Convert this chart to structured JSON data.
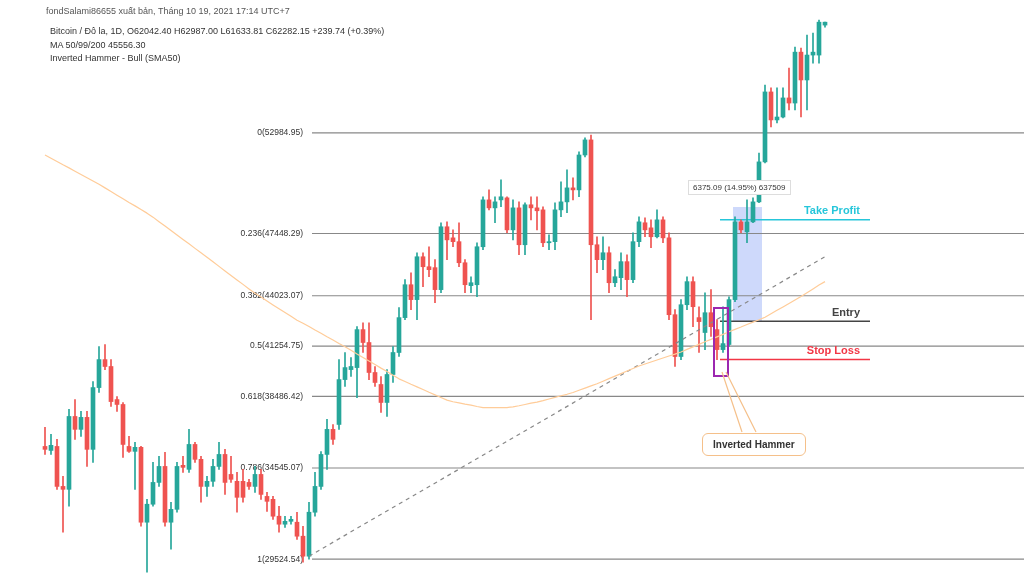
{
  "chart_data": {
    "type": "candlestick",
    "title": "fondSalami86655 xuất bản, Tháng 10 19, 2021 17:14 UTC+7",
    "subtitle": "Bitcoin / Đô la, 1D, O62042.40 H62987.00 L61633.81 C62282.15 +239.74 (+0.39%)",
    "annotations": [
      "MA 50/99/200 45556.30",
      "Inverted Hammer - Bull (SMA50)",
      "6375.09 (14.95%) 637509",
      "Inverted Hammer"
    ],
    "categories": [
      null,
      null,
      null,
      null,
      null,
      null,
      null,
      null,
      null,
      null,
      null,
      null,
      null,
      null,
      null,
      null,
      null,
      null,
      null,
      null,
      null,
      null,
      null,
      null,
      null,
      null,
      null,
      null,
      null,
      null,
      null,
      null,
      null,
      null,
      null,
      null,
      null,
      null,
      null,
      null,
      null,
      null,
      null,
      null,
      null,
      null,
      null,
      null,
      null,
      null,
      null,
      null,
      null,
      null,
      null,
      null,
      null,
      null,
      null,
      null,
      null,
      null,
      null,
      null,
      null,
      null,
      null,
      null,
      null,
      null,
      null,
      null,
      null,
      null,
      null,
      null,
      null,
      null,
      null,
      null,
      null,
      null,
      null,
      null,
      null,
      null,
      null,
      null,
      null,
      null,
      null,
      null,
      null,
      null,
      null,
      null,
      null,
      null,
      null,
      null,
      null,
      null,
      null,
      null,
      null,
      null,
      null,
      null,
      null,
      null,
      null,
      null,
      null,
      null,
      null,
      null,
      null,
      null,
      null,
      null,
      null,
      null,
      null,
      null,
      null,
      null,
      null,
      null,
      null,
      null,
      null
    ],
    "ohlc": [
      [
        35730,
        36780,
        35290,
        35570
      ],
      [
        35510,
        36390,
        35290,
        35790
      ],
      [
        35730,
        36120,
        33370,
        33530
      ],
      [
        33530,
        34080,
        31010,
        33370
      ],
      [
        33370,
        37770,
        32440,
        37380
      ],
      [
        37380,
        38310,
        36120,
        36670
      ],
      [
        36670,
        37660,
        36280,
        37330
      ],
      [
        37330,
        37660,
        34630,
        35570
      ],
      [
        35570,
        39300,
        34850,
        38970
      ],
      [
        38970,
        41230,
        38700,
        40510
      ],
      [
        40510,
        41340,
        39960,
        40130
      ],
      [
        40130,
        40510,
        37930,
        38200
      ],
      [
        38310,
        38480,
        37660,
        38040
      ],
      [
        38040,
        38150,
        35130,
        35840
      ],
      [
        35730,
        36280,
        35400,
        35460
      ],
      [
        35460,
        35950,
        33370,
        35680
      ],
      [
        35680,
        35730,
        31340,
        31560
      ],
      [
        31560,
        32820,
        28810,
        32550
      ],
      [
        32550,
        34850,
        32440,
        33750
      ],
      [
        33750,
        35180,
        33530,
        34630
      ],
      [
        34630,
        35400,
        31340,
        31560
      ],
      [
        31560,
        32660,
        30070,
        32270
      ],
      [
        32270,
        34850,
        32110,
        34630
      ],
      [
        34690,
        35180,
        34300,
        34580
      ],
      [
        34470,
        36670,
        34300,
        35840
      ],
      [
        35840,
        35950,
        34850,
        35020
      ],
      [
        35020,
        35180,
        32660,
        33530
      ],
      [
        33530,
        34080,
        32980,
        33810
      ],
      [
        33810,
        35020,
        33530,
        34630
      ],
      [
        34630,
        35950,
        34470,
        35290
      ],
      [
        35290,
        35570,
        33090,
        33750
      ],
      [
        34190,
        35180,
        33750,
        33920
      ],
      [
        33810,
        34300,
        32110,
        32930
      ],
      [
        33810,
        34470,
        32660,
        32930
      ],
      [
        33750,
        33920,
        33370,
        33530
      ],
      [
        33530,
        34630,
        33200,
        34190
      ],
      [
        34190,
        34470,
        32820,
        33090
      ],
      [
        32980,
        33200,
        32160,
        32710
      ],
      [
        32820,
        32980,
        31720,
        31890
      ],
      [
        31890,
        32440,
        31010,
        31450
      ],
      [
        31450,
        31890,
        31280,
        31610
      ],
      [
        31610,
        31890,
        31450,
        31720
      ],
      [
        31560,
        32110,
        30620,
        30790
      ],
      [
        30790,
        31340,
        29360,
        29690
      ],
      [
        29690,
        32660,
        29520,
        32110
      ],
      [
        32110,
        34300,
        31890,
        33530
      ],
      [
        33530,
        35450,
        33370,
        35290
      ],
      [
        35290,
        37220,
        34470,
        36670
      ],
      [
        36670,
        36940,
        35840,
        36120
      ],
      [
        36940,
        40510,
        36670,
        39410
      ],
      [
        39410,
        40900,
        39030,
        40070
      ],
      [
        39960,
        40620,
        39580,
        40130
      ],
      [
        40070,
        42320,
        38420,
        42160
      ],
      [
        42160,
        42540,
        40900,
        41450
      ],
      [
        41450,
        42540,
        39410,
        39800
      ],
      [
        39800,
        40130,
        39030,
        39250
      ],
      [
        39140,
        39580,
        37600,
        38150
      ],
      [
        38150,
        39960,
        37380,
        39690
      ],
      [
        39690,
        41230,
        39250,
        40900
      ],
      [
        40900,
        43370,
        40680,
        42820
      ],
      [
        42820,
        44910,
        42710,
        44630
      ],
      [
        44630,
        45290,
        43260,
        43810
      ],
      [
        43810,
        46390,
        42710,
        46170
      ],
      [
        46170,
        46390,
        44520,
        45620
      ],
      [
        45620,
        46720,
        45070,
        45460
      ],
      [
        45570,
        46010,
        43640,
        44360
      ],
      [
        44360,
        48040,
        44190,
        47820
      ],
      [
        47820,
        48090,
        46010,
        47100
      ],
      [
        47210,
        47650,
        46720,
        47000
      ],
      [
        47000,
        48040,
        45620,
        45840
      ],
      [
        45840,
        46010,
        44190,
        44630
      ],
      [
        44580,
        45070,
        44190,
        44740
      ],
      [
        44630,
        46940,
        43970,
        46720
      ],
      [
        46720,
        49470,
        46560,
        49300
      ],
      [
        49300,
        49850,
        48750,
        48860
      ],
      [
        48860,
        49470,
        48040,
        49190
      ],
      [
        49300,
        50400,
        48920,
        49470
      ],
      [
        49410,
        49470,
        47490,
        47650
      ],
      [
        47650,
        49300,
        47100,
        48860
      ],
      [
        48860,
        49190,
        46280,
        46830
      ],
      [
        46830,
        49140,
        46280,
        49030
      ],
      [
        49030,
        49470,
        48200,
        48860
      ],
      [
        48860,
        49470,
        47650,
        48700
      ],
      [
        48750,
        48920,
        46720,
        46940
      ],
      [
        46940,
        47380,
        46560,
        47000
      ],
      [
        47000,
        49140,
        46560,
        48750
      ],
      [
        48750,
        50290,
        48370,
        49190
      ],
      [
        49190,
        50950,
        48590,
        49960
      ],
      [
        49960,
        50510,
        49300,
        49850
      ],
      [
        49850,
        51940,
        49470,
        51770
      ],
      [
        51770,
        52710,
        51660,
        52600
      ],
      [
        52600,
        52870,
        42710,
        46830
      ],
      [
        46830,
        47270,
        45290,
        46010
      ],
      [
        46010,
        47270,
        45460,
        46390
      ],
      [
        46390,
        46720,
        44190,
        44740
      ],
      [
        44740,
        45460,
        44520,
        45070
      ],
      [
        45020,
        46390,
        44360,
        45900
      ],
      [
        45900,
        46280,
        43970,
        44910
      ],
      [
        44910,
        47490,
        44740,
        47000
      ],
      [
        47000,
        48370,
        46720,
        48090
      ],
      [
        48040,
        48310,
        47270,
        47650
      ],
      [
        47760,
        48200,
        46670,
        47270
      ],
      [
        47270,
        48750,
        47210,
        48200
      ],
      [
        48200,
        48370,
        46940,
        47210
      ],
      [
        47210,
        47490,
        42710,
        42980
      ],
      [
        42980,
        43260,
        40130,
        40680
      ],
      [
        40680,
        43810,
        40510,
        43530
      ],
      [
        43530,
        45070,
        43260,
        44800
      ],
      [
        44800,
        45070,
        42320,
        43420
      ],
      [
        42820,
        43420,
        40900,
        42600
      ],
      [
        42000,
        44190,
        41060,
        43090
      ],
      [
        43090,
        44360,
        41780,
        42320
      ],
      [
        42160,
        42710,
        40510,
        41060
      ],
      [
        41060,
        43420,
        40900,
        41390
      ],
      [
        41340,
        43970,
        41230,
        43810
      ],
      [
        43810,
        48370,
        43700,
        48090
      ],
      [
        48090,
        48200,
        47490,
        47650
      ],
      [
        47540,
        49300,
        46940,
        48090
      ],
      [
        48090,
        49410,
        48040,
        49190
      ],
      [
        49190,
        51880,
        49140,
        51390
      ],
      [
        51390,
        55620,
        51340,
        55240
      ],
      [
        55240,
        55460,
        53310,
        53700
      ],
      [
        53700,
        55460,
        53530,
        53860
      ],
      [
        53860,
        55460,
        53810,
        54910
      ],
      [
        54910,
        56550,
        54250,
        54630
      ],
      [
        54630,
        57710,
        54250,
        57430
      ],
      [
        57430,
        57650,
        53860,
        55900
      ],
      [
        55900,
        58370,
        54250,
        57270
      ],
      [
        57270,
        58480,
        56830,
        57430
      ],
      [
        57270,
        59190,
        56830,
        59080
      ],
      [
        58920,
        59080,
        58810,
        59080
      ]
    ],
    "series": [
      {
        "type": "line",
        "color": "#ffcc99",
        "values": [
          51770,
          51590,
          51410,
          51230,
          51060,
          50880,
          50700,
          50520,
          50340,
          50160,
          49960,
          49760,
          49560,
          49360,
          49160,
          48970,
          48770,
          48570,
          48350,
          48100,
          47860,
          47610,
          47370,
          47120,
          46880,
          46630,
          46390,
          46140,
          45890,
          45640,
          45390,
          45140,
          44890,
          44650,
          44400,
          44160,
          43950,
          43740,
          43520,
          43310,
          43100,
          42890,
          42680,
          42510,
          42330,
          42140,
          41960,
          41770,
          41590,
          41400,
          41220,
          41020,
          40820,
          40630,
          40430,
          40240,
          40040,
          39850,
          39650,
          39450,
          39300,
          39150,
          39010,
          38860,
          38710,
          38570,
          38420,
          38280,
          38190,
          38130,
          38060,
          38000,
          37930,
          37870,
          37870,
          37870,
          37870,
          37870,
          37910,
          37970,
          38040,
          38110,
          38170,
          38250,
          38340,
          38430,
          38520,
          38600,
          38700,
          38820,
          38940,
          39060,
          39180,
          39320,
          39460,
          39600,
          39740,
          39880,
          40020,
          40160,
          40270,
          40380,
          40490,
          40600,
          40710,
          40810,
          40930,
          41070,
          41210,
          41350,
          41490,
          41620,
          41760,
          41900,
          42040,
          42170,
          42300,
          42440,
          42570,
          42700,
          42840,
          43030,
          43220,
          43410,
          43600,
          43790,
          43980,
          44190,
          44400,
          44610,
          44800
        ]
      },
      {
        "type": "line",
        "color": "#888888",
        "line_style": "dashed",
        "values": [
          null,
          null,
          null,
          null,
          null,
          null,
          null,
          null,
          null,
          null,
          null,
          null,
          null,
          null,
          null,
          null,
          null,
          null,
          null,
          null,
          null,
          null,
          null,
          null,
          null,
          null,
          null,
          null,
          null,
          null,
          null,
          null,
          null,
          null,
          null,
          null,
          null,
          null,
          null,
          null,
          null,
          null,
          null,
          null,
          29690,
          null,
          null,
          null,
          null,
          null,
          null,
          null,
          null,
          null,
          null,
          null,
          null,
          null,
          null,
          null,
          null,
          null,
          null,
          null,
          null,
          null,
          null,
          null,
          null,
          null,
          null,
          null,
          null,
          null,
          null,
          null,
          null,
          null,
          null,
          null,
          null,
          null,
          null,
          null,
          null,
          null,
          null,
          null,
          null,
          null,
          null,
          null,
          null,
          null,
          null,
          null,
          null,
          null,
          null,
          null,
          null,
          null,
          null,
          null,
          null,
          null,
          null,
          null,
          null,
          null,
          null,
          null,
          null,
          null,
          null,
          null,
          null,
          null,
          null,
          null,
          null,
          null,
          null,
          null,
          null,
          null,
          null,
          null,
          null,
          null,
          46170
        ]
      }
    ],
    "ylim": [
      28600,
      60300
    ],
    "tick_labels": false,
    "legend": false,
    "ref_lines": [
      {
        "axis": "y",
        "value": 52984.95,
        "label": "0(52984.95)"
      },
      {
        "axis": "y",
        "value": 47448.29,
        "label": "0.236(47448.29)"
      },
      {
        "axis": "y",
        "value": 44023.07,
        "label": "0.382(44023.07)"
      },
      {
        "axis": "y",
        "value": 41254.75,
        "label": "0.5(41254.75)"
      },
      {
        "axis": "y",
        "value": 38486.42,
        "label": "0.618(38486.42)"
      },
      {
        "axis": "y",
        "value": 34545.07,
        "label": "0.786(34545.07)"
      },
      {
        "axis": "y",
        "value": 29524.54,
        "label": "1(29524.54)"
      },
      {
        "axis": "y",
        "value": 48210,
        "label": "Take Profit",
        "color": "#26c6da"
      },
      {
        "axis": "y",
        "value": 42620,
        "label": "Entry",
        "color": "#444444"
      },
      {
        "axis": "y",
        "value": 40510,
        "label": "Stop Loss",
        "color": "#f23645"
      }
    ]
  }
}
